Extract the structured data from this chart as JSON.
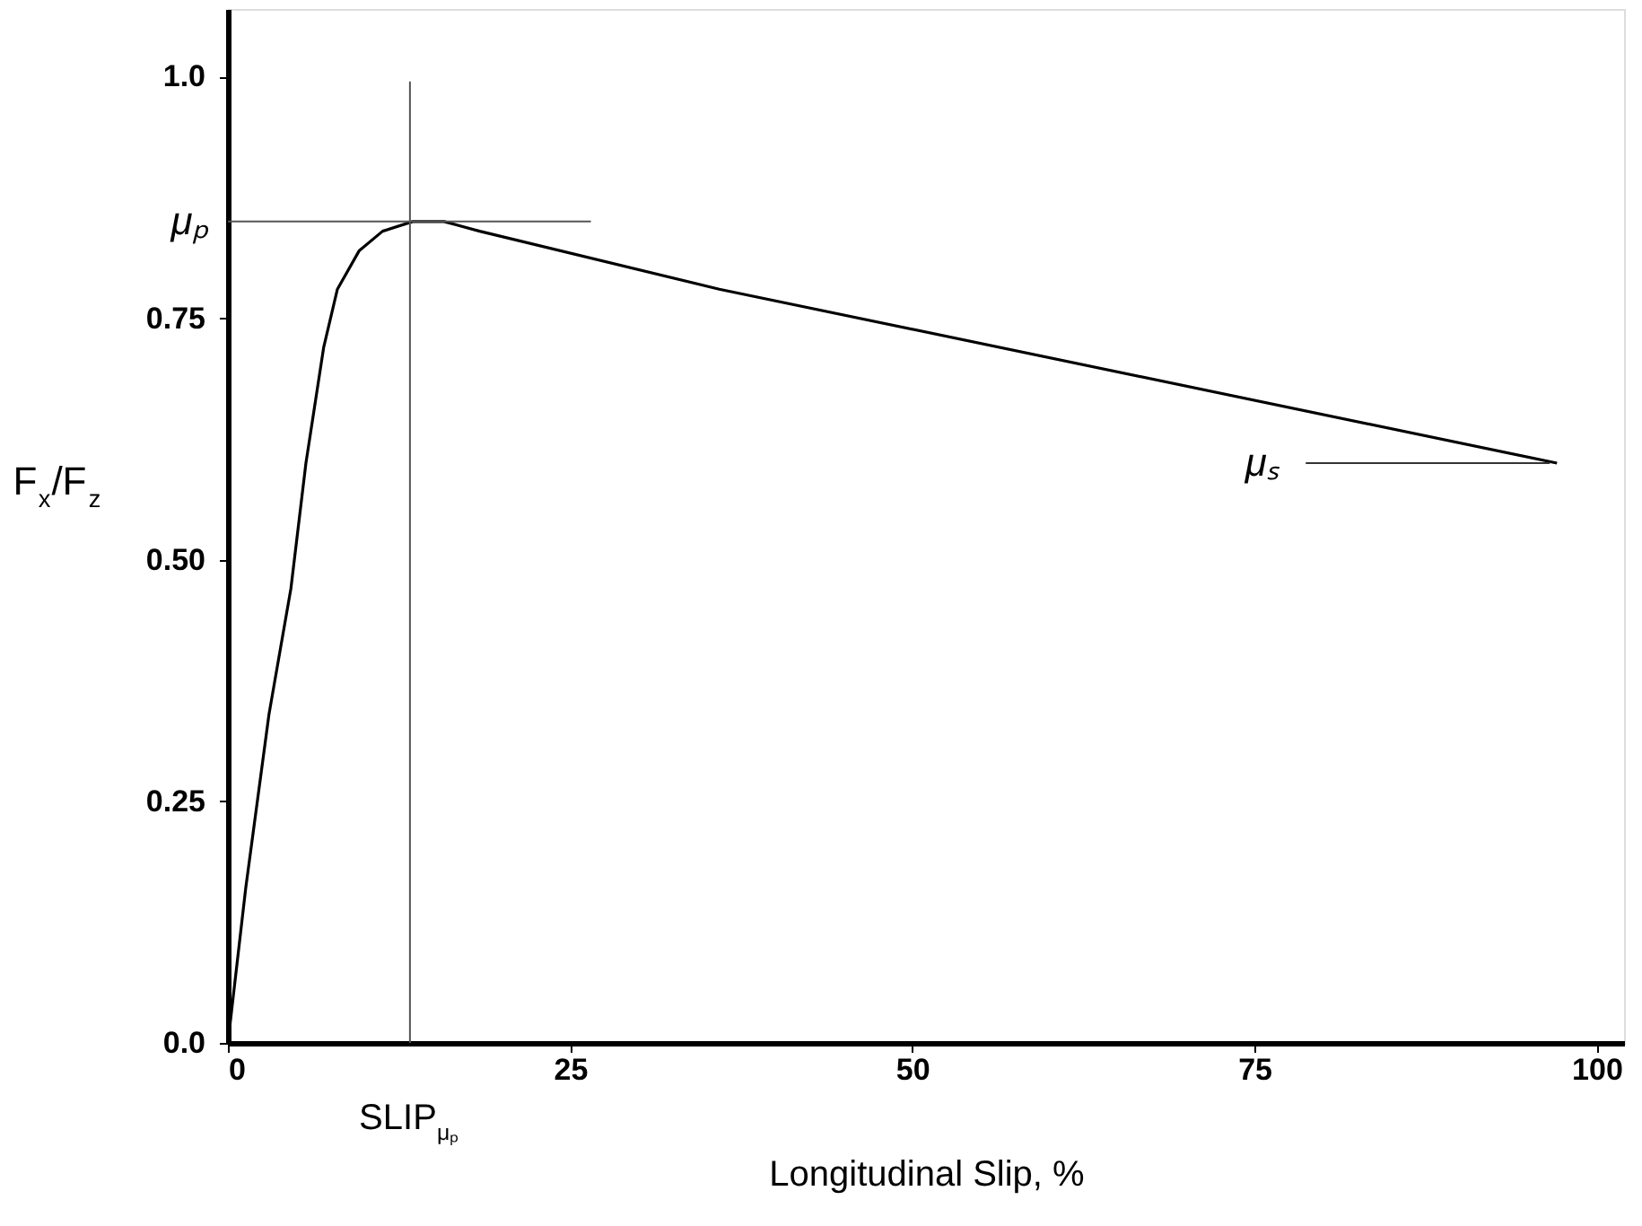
{
  "chart_data": {
    "type": "line",
    "xlabel": "Longitudinal Slip, %",
    "ylabel": "F$_{x}$/F$_{z}$",
    "series": [
      {
        "color": "#000000",
        "x": [
          0,
          1.3,
          3.0,
          4.6,
          5.7,
          7.0,
          8.0,
          9.6,
          11.3,
          13.5,
          15.8,
          18.4,
          35.9,
          97.1
        ],
        "values": [
          0,
          0.16,
          0.34,
          0.47,
          0.6,
          0.72,
          0.78,
          0.82,
          0.84,
          0.85,
          0.85,
          0.84,
          0.78,
          0.6
        ]
      }
    ],
    "xlim": [
      0,
      102
    ],
    "ylim": [
      0,
      1.07
    ],
    "xticks": [
      0,
      25,
      50,
      75,
      100
    ],
    "yticks": [
      {
        "value": 0,
        "label": "0.0"
      },
      {
        "value": 0.25,
        "label": "0.25"
      },
      {
        "value": 0.5,
        "label": "0.50"
      },
      {
        "value": 0.75,
        "label": "0.75"
      },
      {
        "value": 1.0,
        "label": "1.0"
      }
    ],
    "ref_lines": [
      {
        "axis": "y",
        "value": 0.85,
        "label": "μₚ",
        "color": "#555555"
      },
      {
        "axis": "x",
        "value": 13.3,
        "label": "SLIP$_{μₚ}$",
        "color": "#555555"
      }
    ],
    "annotations": [
      {
        "text": "μₛ",
        "x": 97.1,
        "y": 0.6
      }
    ],
    "grid": false,
    "marker": "none",
    "line_style": "solid"
  }
}
